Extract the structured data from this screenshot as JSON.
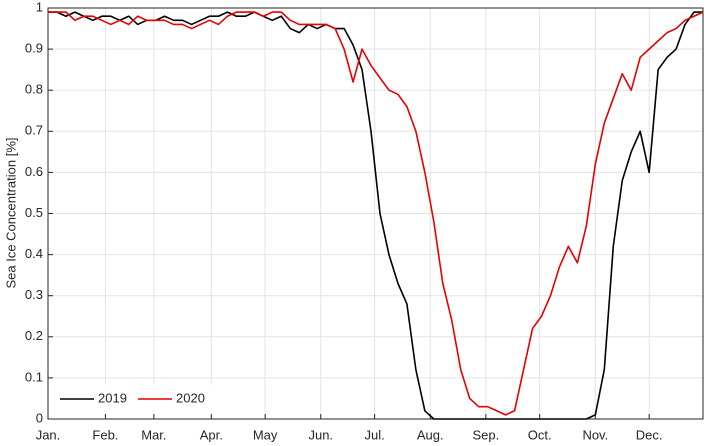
{
  "chart_data": {
    "type": "line",
    "y_label": "Sea Ice Concentration [%]",
    "x": [
      1,
      6,
      11,
      16,
      21,
      26,
      31,
      36,
      41,
      46,
      51,
      56,
      61,
      66,
      71,
      76,
      81,
      86,
      91,
      96,
      101,
      106,
      111,
      116,
      121,
      126,
      131,
      136,
      141,
      146,
      151,
      156,
      161,
      166,
      171,
      176,
      181,
      186,
      191,
      196,
      201,
      206,
      211,
      216,
      221,
      226,
      231,
      236,
      241,
      246,
      251,
      256,
      261,
      266,
      271,
      276,
      281,
      286,
      291,
      296,
      301,
      306,
      311,
      316,
      321,
      326,
      331,
      336,
      341,
      346,
      351,
      356,
      361,
      366
    ],
    "xlim": [
      1,
      366
    ],
    "xticks": [
      {
        "value": 1,
        "label": "Jan."
      },
      {
        "value": 33,
        "label": "Feb."
      },
      {
        "value": 60,
        "label": "Mar."
      },
      {
        "value": 92,
        "label": "Apr."
      },
      {
        "value": 122,
        "label": "May"
      },
      {
        "value": 153,
        "label": "Jun."
      },
      {
        "value": 183,
        "label": "Jul."
      },
      {
        "value": 214,
        "label": "Aug."
      },
      {
        "value": 245,
        "label": "Sep."
      },
      {
        "value": 275,
        "label": "Oct."
      },
      {
        "value": 306,
        "label": "Nov."
      },
      {
        "value": 336,
        "label": "Dec."
      }
    ],
    "ylim": [
      0,
      1
    ],
    "yticks": [
      0,
      0.1,
      0.2,
      0.3,
      0.4,
      0.5,
      0.6,
      0.7,
      0.8,
      0.9,
      1
    ],
    "grid": true,
    "legend": "lower left",
    "series": [
      {
        "name": "2019",
        "color": "#000000",
        "values": [
          0.99,
          0.99,
          0.98,
          0.99,
          0.98,
          0.97,
          0.98,
          0.98,
          0.97,
          0.98,
          0.96,
          0.97,
          0.97,
          0.98,
          0.97,
          0.97,
          0.96,
          0.97,
          0.98,
          0.98,
          0.99,
          0.98,
          0.98,
          0.99,
          0.98,
          0.97,
          0.98,
          0.95,
          0.94,
          0.96,
          0.95,
          0.96,
          0.95,
          0.95,
          0.91,
          0.85,
          0.7,
          0.5,
          0.4,
          0.33,
          0.28,
          0.12,
          0.02,
          0,
          0,
          0,
          0,
          0,
          0,
          0,
          0,
          0,
          0,
          0,
          0,
          0,
          0,
          0,
          0,
          0,
          0,
          0.01,
          0.12,
          0.42,
          0.58,
          0.65,
          0.7,
          0.6,
          0.85,
          0.88,
          0.9,
          0.96,
          0.99,
          0.99
        ]
      },
      {
        "name": "2020",
        "color": "#e60000",
        "values": [
          0.99,
          0.99,
          0.99,
          0.97,
          0.98,
          0.98,
          0.97,
          0.96,
          0.97,
          0.96,
          0.98,
          0.97,
          0.97,
          0.97,
          0.96,
          0.96,
          0.95,
          0.96,
          0.97,
          0.96,
          0.98,
          0.99,
          0.99,
          0.99,
          0.98,
          0.99,
          0.99,
          0.97,
          0.96,
          0.96,
          0.96,
          0.96,
          0.95,
          0.9,
          0.82,
          0.9,
          0.86,
          0.83,
          0.8,
          0.79,
          0.76,
          0.7,
          0.6,
          0.48,
          0.33,
          0.24,
          0.12,
          0.05,
          0.03,
          0.03,
          0.02,
          0.01,
          0.02,
          0.12,
          0.22,
          0.25,
          0.3,
          0.37,
          0.42,
          0.38,
          0.47,
          0.62,
          0.72,
          0.78,
          0.84,
          0.8,
          0.88,
          0.9,
          0.92,
          0.94,
          0.95,
          0.97,
          0.98,
          0.99
        ]
      }
    ]
  }
}
